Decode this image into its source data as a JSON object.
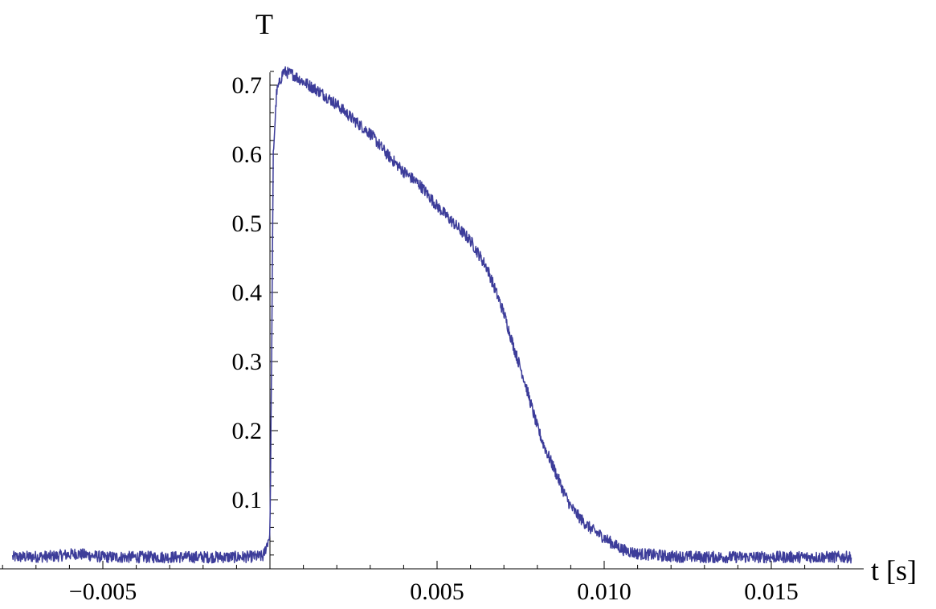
{
  "chart_data": {
    "type": "line",
    "title": "",
    "xlabel": "t [s]",
    "ylabel": "T",
    "xlim": [
      -0.0081,
      0.0178
    ],
    "ylim": [
      0,
      0.74
    ],
    "grid": false,
    "x_ticks": [
      -0.005,
      0.005,
      0.01,
      0.015
    ],
    "x_tick_labels": [
      "−0.005",
      "0.005",
      "0.010",
      "0.015"
    ],
    "y_ticks": [
      0.1,
      0.2,
      0.3,
      0.4,
      0.5,
      0.6,
      0.7
    ],
    "y_tick_labels": [
      "0.1",
      "0.2",
      "0.3",
      "0.4",
      "0.5",
      "0.6",
      "0.7"
    ],
    "series": [
      {
        "color": "#3d3d9a",
        "x": [
          -0.0077,
          -0.0065,
          -0.0058,
          -0.005,
          -0.004,
          -0.003,
          -0.002,
          -0.001,
          -0.0002,
          0.0,
          5e-05,
          0.0001,
          0.0002,
          0.0004,
          0.0007,
          0.001,
          0.0015,
          0.002,
          0.0025,
          0.003,
          0.0035,
          0.004,
          0.0045,
          0.005,
          0.0055,
          0.006,
          0.0065,
          0.007,
          0.0073,
          0.0076,
          0.0078,
          0.008,
          0.0082,
          0.0085,
          0.0088,
          0.009,
          0.0093,
          0.0096,
          0.01,
          0.0103,
          0.0106,
          0.011,
          0.012,
          0.013,
          0.014,
          0.015,
          0.016,
          0.0174
        ],
        "y": [
          0.017,
          0.018,
          0.022,
          0.017,
          0.017,
          0.017,
          0.017,
          0.017,
          0.018,
          0.05,
          0.3,
          0.6,
          0.69,
          0.72,
          0.715,
          0.705,
          0.69,
          0.672,
          0.65,
          0.63,
          0.6,
          0.575,
          0.555,
          0.525,
          0.5,
          0.475,
          0.435,
          0.37,
          0.32,
          0.275,
          0.24,
          0.205,
          0.178,
          0.145,
          0.11,
          0.09,
          0.072,
          0.058,
          0.045,
          0.035,
          0.027,
          0.022,
          0.018,
          0.017,
          0.017,
          0.017,
          0.017,
          0.017
        ]
      }
    ]
  }
}
